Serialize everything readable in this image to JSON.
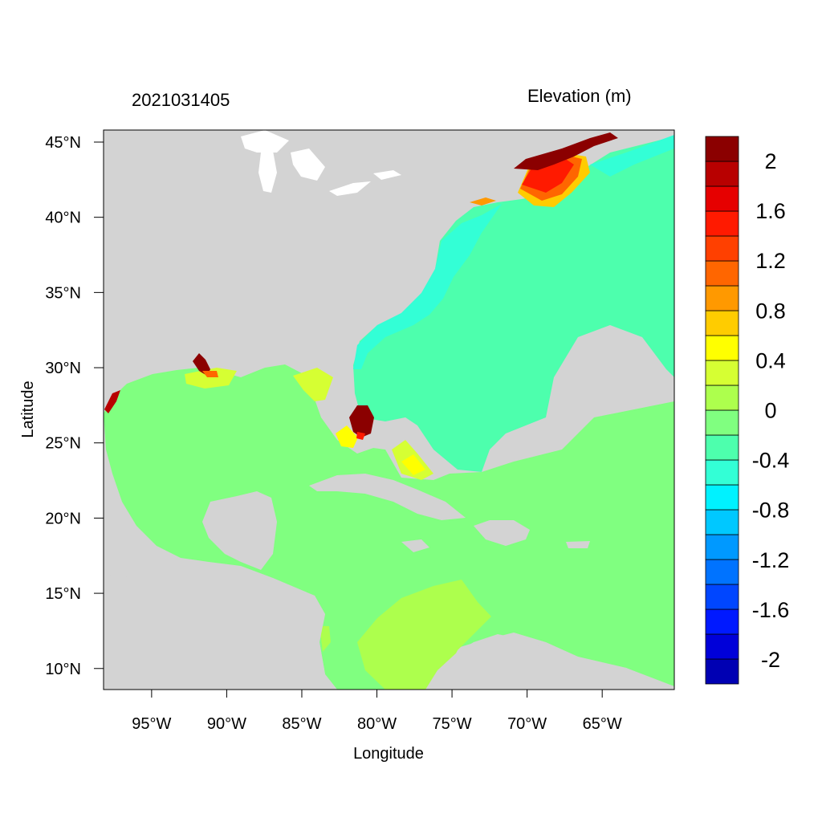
{
  "header": {
    "date_label": "2021031405",
    "variable_label": "Elevation (m)"
  },
  "map": {
    "lon_range": [
      -98.2,
      -60.2
    ],
    "lat_range": [
      8.6,
      45.8
    ],
    "x_ticks": [
      -95,
      -90,
      -85,
      -80,
      -75,
      -70,
      -65
    ],
    "y_ticks": [
      10,
      15,
      20,
      25,
      30,
      35,
      40,
      45
    ],
    "x_tick_labels": [
      "95°W",
      "90°W",
      "85°W",
      "80°W",
      "75°W",
      "70°W",
      "65°W"
    ],
    "y_tick_labels": [
      "10°N",
      "15°N",
      "20°N",
      "25°N",
      "30°N",
      "35°N",
      "40°N",
      "45°N"
    ],
    "xlabel": "Longitude",
    "ylabel": "Latitude",
    "land_color": "#d3d3d3",
    "lake_color": "#ffffff"
  },
  "colorbar": {
    "levels": [
      "-2.2",
      "-2.0",
      "-1.8",
      "-1.6",
      "-1.4",
      "-1.2",
      "-1.0",
      "-0.8",
      "-0.6",
      "-0.4",
      "-0.2",
      "0",
      "0.2",
      "0.4",
      "0.6",
      "0.8",
      "1.0",
      "1.2",
      "1.4",
      "1.6",
      "1.8",
      "2.0",
      "2.2"
    ],
    "colors": [
      "#0000b3",
      "#0000d9",
      "#0019ff",
      "#0046ff",
      "#0073ff",
      "#0099ff",
      "#00c8ff",
      "#00f2ff",
      "#33ffd6",
      "#4dffad",
      "#80ff80",
      "#adff4d",
      "#d6ff33",
      "#ffff00",
      "#ffcc00",
      "#ff9900",
      "#ff6600",
      "#ff4000",
      "#ff1a00",
      "#e60000",
      "#b80000",
      "#8b0000"
    ],
    "labels": [
      "2",
      "1.6",
      "1.2",
      "0.8",
      "0.4",
      "0",
      "-0.4",
      "-0.8",
      "-1.2",
      "-1.6",
      "-2"
    ]
  }
}
